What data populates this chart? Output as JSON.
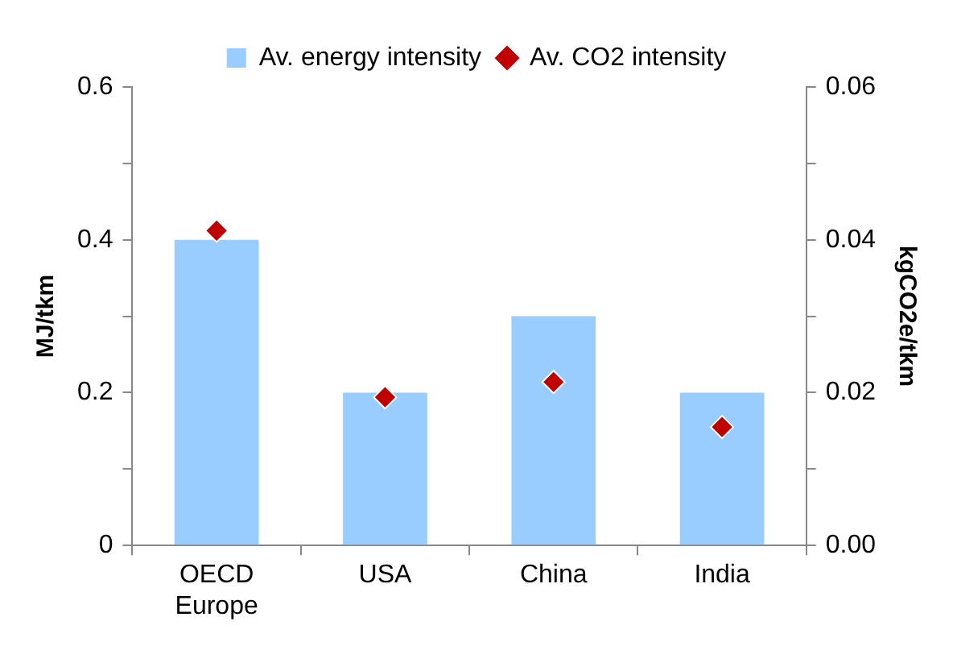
{
  "chart_data": {
    "type": "bar",
    "ylabel": "MJ/tkm",
    "y2label": "kgCO2e/tkm",
    "categories": [
      "OECD Europe",
      "USA",
      "China",
      "India"
    ],
    "series": [
      {
        "name": "Av. energy intensity",
        "color": "#99ccff",
        "values": [
          0.4,
          0.2,
          0.3,
          0.2
        ]
      },
      {
        "name": "Av. CO2 intensity",
        "type": "scatter",
        "color": "#c00000",
        "axis": "y2",
        "values": [
          0.0412,
          0.0194,
          0.0214,
          0.0155
        ]
      }
    ],
    "ylim": [
      0,
      0.6
    ],
    "yticks": [
      0,
      {
        "value": 0.1,
        "label": null
      },
      {
        "value": 0.2,
        "label": "0.2"
      },
      {
        "value": 0.3,
        "label": null
      },
      {
        "value": 0.4,
        "label": "0.4"
      },
      {
        "value": 0.5,
        "label": null
      },
      {
        "value": 0.6,
        "label": "0.6"
      }
    ],
    "y2lim": [
      0,
      0.06
    ],
    "y2ticks": [
      {
        "value": 0,
        "label": "0.00"
      },
      {
        "value": 0.01,
        "label": null
      },
      {
        "value": 0.02,
        "label": "0.02"
      },
      {
        "value": 0.03,
        "label": null
      },
      {
        "value": 0.04,
        "label": "0.04"
      },
      {
        "value": 0.05,
        "label": null
      },
      {
        "value": 0.06,
        "label": "0.06"
      }
    ],
    "grid": false,
    "legend": "top",
    "marker": "diamond"
  }
}
